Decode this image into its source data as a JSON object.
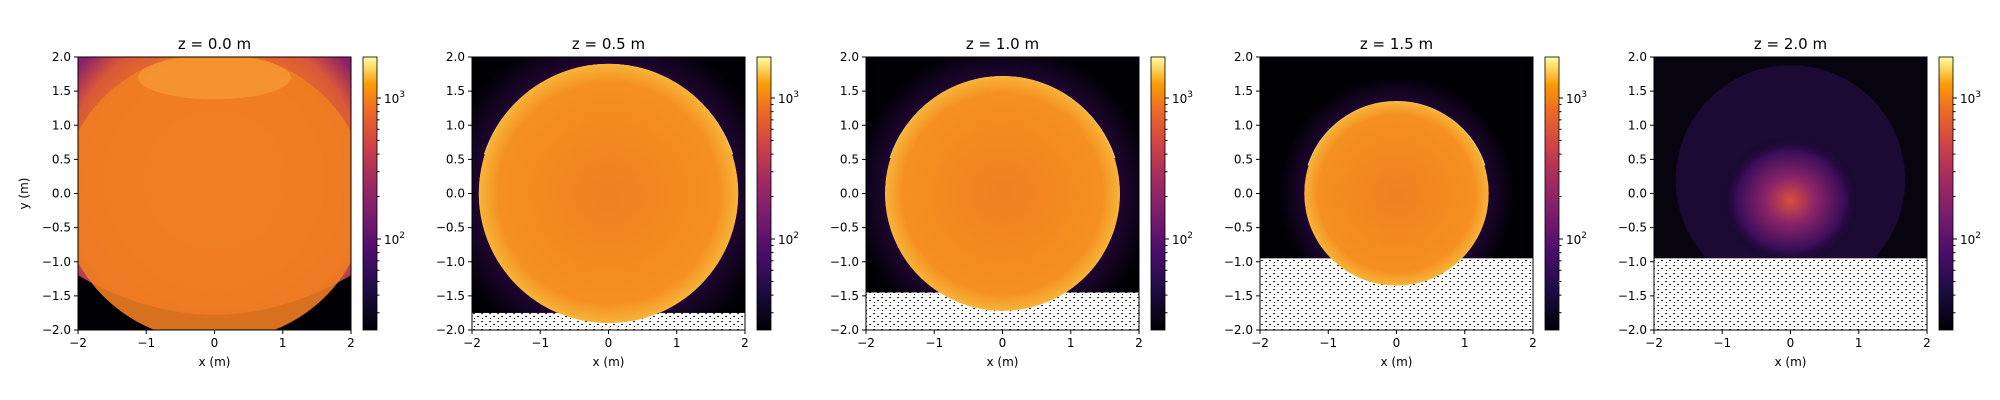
{
  "chart_data": [
    {
      "type": "heatmap",
      "title": "z = 0.0 m",
      "xlabel": "x (m)",
      "ylabel": "y (m)",
      "xlim": [
        -2,
        2
      ],
      "ylim": [
        -2,
        2
      ],
      "xticks": [
        "−2",
        "−1",
        "0",
        "1",
        "2"
      ],
      "yticks": [
        "2.0",
        "1.5",
        "1.0",
        "0.5",
        "0.0",
        "−0.5",
        "−1.0",
        "−1.5",
        "−2.0"
      ],
      "colorbar": {
        "scale": "log",
        "ticks": [
          {
            "base": "10",
            "exp": "3"
          },
          {
            "base": "10",
            "exp": "2"
          }
        ]
      },
      "colormap": "inferno",
      "beam_center": [
        0,
        0
      ],
      "beam_radius": null,
      "void_y": null
    },
    {
      "type": "heatmap",
      "title": "z = 0.5 m",
      "xlabel": "x (m)",
      "ylabel": "",
      "xlim": [
        -2,
        2
      ],
      "ylim": [
        -2,
        2
      ],
      "xticks": [
        "−2",
        "−1",
        "0",
        "1",
        "2"
      ],
      "yticks": [
        "2.0",
        "1.5",
        "1.0",
        "0.5",
        "0.0",
        "−0.5",
        "−1.0",
        "−1.5",
        "−2.0"
      ],
      "colorbar": {
        "scale": "log",
        "ticks": [
          {
            "base": "10",
            "exp": "3"
          },
          {
            "base": "10",
            "exp": "2"
          }
        ]
      },
      "colormap": "inferno",
      "beam_center": [
        0,
        0
      ],
      "beam_radius": 1.9,
      "void_y": -1.75
    },
    {
      "type": "heatmap",
      "title": "z = 1.0 m",
      "xlabel": "x (m)",
      "ylabel": "",
      "xlim": [
        -2,
        2
      ],
      "ylim": [
        -2,
        2
      ],
      "xticks": [
        "−2",
        "−1",
        "0",
        "1",
        "2"
      ],
      "yticks": [
        "2.0",
        "1.5",
        "1.0",
        "0.5",
        "0.0",
        "−0.5",
        "−1.0",
        "−1.5",
        "−2.0"
      ],
      "colorbar": {
        "scale": "log",
        "ticks": [
          {
            "base": "10",
            "exp": "3"
          },
          {
            "base": "10",
            "exp": "2"
          }
        ]
      },
      "colormap": "inferno",
      "beam_center": [
        0,
        0
      ],
      "beam_radius": 1.72,
      "void_y": -1.45
    },
    {
      "type": "heatmap",
      "title": "z = 1.5 m",
      "xlabel": "x (m)",
      "ylabel": "",
      "xlim": [
        -2,
        2
      ],
      "ylim": [
        -2,
        2
      ],
      "xticks": [
        "−2",
        "−1",
        "0",
        "1",
        "2"
      ],
      "yticks": [
        "2.0",
        "1.5",
        "1.0",
        "0.5",
        "0.0",
        "−0.5",
        "−1.0",
        "−1.5",
        "−2.0"
      ],
      "colorbar": {
        "scale": "log",
        "ticks": [
          {
            "base": "10",
            "exp": "3"
          },
          {
            "base": "10",
            "exp": "2"
          }
        ]
      },
      "colormap": "inferno",
      "beam_center": [
        0,
        0
      ],
      "beam_radius": 1.35,
      "void_y": -0.95
    },
    {
      "type": "heatmap",
      "title": "z = 2.0 m",
      "xlabel": "x (m)",
      "ylabel": "",
      "xlim": [
        -2,
        2
      ],
      "ylim": [
        -2,
        2
      ],
      "xticks": [
        "−2",
        "−1",
        "0",
        "1",
        "2"
      ],
      "yticks": [
        "2.0",
        "1.5",
        "1.0",
        "0.5",
        "0.0",
        "−0.5",
        "−1.0",
        "−1.5",
        "−2.0"
      ],
      "colorbar": {
        "scale": "log",
        "ticks": [
          {
            "base": "10",
            "exp": "3"
          },
          {
            "base": "10",
            "exp": "2"
          }
        ]
      },
      "colormap": "inferno",
      "beam_center": [
        0,
        -0.1
      ],
      "beam_radius": null,
      "void_y": -0.95
    }
  ]
}
